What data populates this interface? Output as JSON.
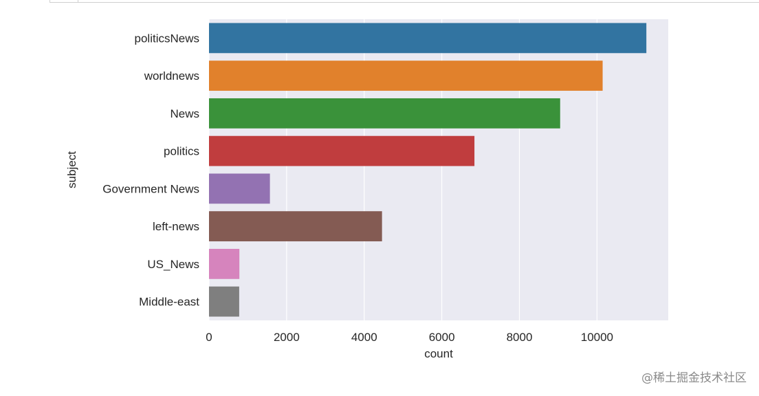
{
  "chart_data": {
    "type": "bar",
    "orientation": "horizontal",
    "categories": [
      "politicsNews",
      "worldnews",
      "News",
      "politics",
      "Government News",
      "left-news",
      "US_News",
      "Middle-east"
    ],
    "values": [
      11272,
      10145,
      9050,
      6841,
      1570,
      4459,
      783,
      778
    ],
    "colors": [
      "#3274a1",
      "#e1812c",
      "#3a923a",
      "#c03d3e",
      "#9372b2",
      "#845b53",
      "#d684bd",
      "#7f7f7f"
    ],
    "xlabel": "count",
    "ylabel": "subject",
    "xlim": [
      0,
      11836
    ],
    "xticks": [
      0,
      2000,
      4000,
      6000,
      8000,
      10000
    ],
    "grid": true,
    "style": {
      "plot_background": "#eaeaf2",
      "grid_color": "#ffffff"
    }
  },
  "watermark": "@稀土掘金技术社区"
}
